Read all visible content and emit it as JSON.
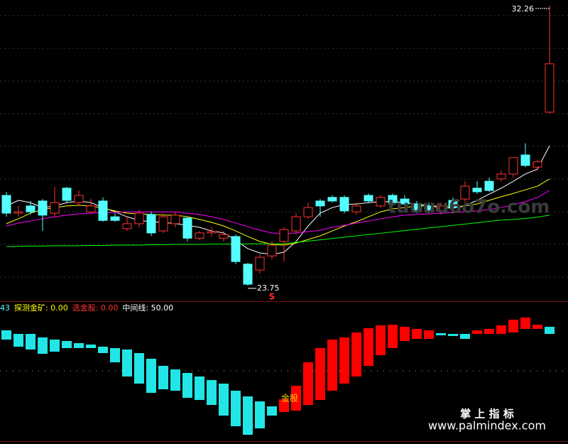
{
  "chart_data": [
    {
      "type": "candlestick",
      "ylim": [
        23.36,
        32.43
      ],
      "up_color": "#ff3232",
      "down_color": "#54ffff",
      "open": [
        26.49,
        25.95,
        26.17,
        26.32,
        25.95,
        26.71,
        26.27,
        25.99,
        26.32,
        25.84,
        25.48,
        25.63,
        25.91,
        25.41,
        25.63,
        25.8,
        25.19,
        25.35,
        25.19,
        25.24,
        24.4,
        24.22,
        24.65,
        25.09,
        25.41,
        25.84,
        26.32,
        26.43,
        26.43,
        25.99,
        26.49,
        26.17,
        26.49,
        26.38,
        26.23,
        26.17,
        26.02,
        26.34,
        26.38,
        26.71,
        26.92,
        26.99,
        27.14,
        27.72,
        27.35,
        29.02
      ],
      "high": [
        26.6,
        26.17,
        26.32,
        26.38,
        26.75,
        26.75,
        26.64,
        26.38,
        26.43,
        25.95,
        25.84,
        26.06,
        25.99,
        25.95,
        25.99,
        25.84,
        25.41,
        25.52,
        25.41,
        25.3,
        24.44,
        24.7,
        25.09,
        25.52,
        25.95,
        26.27,
        26.38,
        26.49,
        26.49,
        26.27,
        26.55,
        26.49,
        26.55,
        26.49,
        26.32,
        26.27,
        26.27,
        26.43,
        26.92,
        26.92,
        27.03,
        27.25,
        27.64,
        28.07,
        27.57,
        32.26
      ],
      "low": [
        25.84,
        25.84,
        25.91,
        25.41,
        25.84,
        26.27,
        26.17,
        25.95,
        25.69,
        25.69,
        25.41,
        25.52,
        25.26,
        25.35,
        25.52,
        25.09,
        25.13,
        25.24,
        25.09,
        24.4,
        23.75,
        24.11,
        24.55,
        24.48,
        25.3,
        25.78,
        25.84,
        26.27,
        25.95,
        25.91,
        26.27,
        26.12,
        26.17,
        26.17,
        25.95,
        25.95,
        25.91,
        25.95,
        26.27,
        26.53,
        26.6,
        26.92,
        27.03,
        27.35,
        27.25,
        28.97
      ],
      "close": [
        25.95,
        25.99,
        25.99,
        25.89,
        26.27,
        26.34,
        26.49,
        26.17,
        25.73,
        25.73,
        25.63,
        25.95,
        25.35,
        25.84,
        25.89,
        25.19,
        25.35,
        25.39,
        25.3,
        24.48,
        23.79,
        24.61,
        24.98,
        25.45,
        25.84,
        26.12,
        26.17,
        26.32,
        26.02,
        26.17,
        26.32,
        26.43,
        26.27,
        26.23,
        26.02,
        26.02,
        26.17,
        26.12,
        26.77,
        26.6,
        26.64,
        27.14,
        27.64,
        27.4,
        27.51,
        30.49
      ],
      "lines": [
        {
          "color": "#ffffff",
          "values": [
            26.17,
            26.34,
            26.27,
            26.12,
            26.17,
            26.27,
            26.32,
            26.27,
            26.12,
            25.99,
            25.84,
            25.73,
            25.69,
            25.67,
            25.63,
            25.58,
            25.52,
            25.41,
            25.35,
            25.13,
            24.87,
            24.74,
            24.7,
            24.76,
            25.09,
            25.56,
            25.95,
            26.12,
            26.21,
            26.23,
            26.27,
            26.3,
            26.3,
            26.27,
            26.23,
            26.17,
            26.12,
            26.1,
            26.17,
            26.34,
            26.53,
            26.71,
            26.92,
            27.14,
            27.29,
            28.0
          ]
        },
        {
          "color": "#ffff00",
          "values": [
            25.63,
            25.78,
            25.95,
            26.06,
            26.12,
            26.17,
            26.19,
            26.17,
            26.1,
            26.02,
            25.95,
            25.93,
            25.91,
            25.89,
            25.89,
            25.84,
            25.76,
            25.67,
            25.56,
            25.41,
            25.24,
            25.09,
            25.0,
            24.98,
            25.04,
            25.15,
            25.26,
            25.41,
            25.56,
            25.69,
            25.84,
            25.99,
            26.08,
            26.12,
            26.17,
            26.17,
            26.17,
            26.14,
            26.17,
            26.23,
            26.34,
            26.45,
            26.55,
            26.66,
            26.77,
            26.99
          ]
        },
        {
          "color": "#ff00ff",
          "values": [
            25.56,
            25.65,
            25.71,
            25.78,
            25.84,
            25.89,
            25.93,
            25.95,
            25.97,
            25.97,
            25.99,
            25.99,
            25.99,
            25.99,
            25.99,
            25.95,
            25.91,
            25.84,
            25.76,
            25.65,
            25.54,
            25.43,
            25.35,
            25.32,
            25.35,
            25.39,
            25.43,
            25.52,
            25.58,
            25.65,
            25.71,
            25.78,
            25.84,
            25.89,
            25.91,
            25.93,
            25.95,
            25.97,
            25.99,
            26.02,
            26.06,
            26.12,
            26.21,
            26.3,
            26.43,
            26.64
          ]
        },
        {
          "color": "#00ff00",
          "values": [
            24.94,
            24.94,
            24.95,
            24.95,
            24.96,
            24.96,
            24.96,
            24.97,
            24.97,
            24.98,
            24.98,
            24.98,
            24.99,
            24.99,
            25.0,
            25.0,
            25.0,
            25.01,
            25.01,
            25.01,
            25.02,
            25.02,
            25.02,
            25.02,
            25.06,
            25.1,
            25.14,
            25.18,
            25.22,
            25.26,
            25.3,
            25.34,
            25.38,
            25.42,
            25.46,
            25.5,
            25.54,
            25.58,
            25.62,
            25.66,
            25.7,
            25.74,
            25.76,
            25.79,
            25.83,
            25.89
          ]
        }
      ],
      "high_label": 32.26,
      "low_label": 23.75,
      "signal": "S"
    },
    {
      "type": "floating-bar",
      "ylim": [
        0,
        100
      ],
      "up_color": "#ff0000",
      "down_color": "#22e6e6",
      "legend": [
        {
          "text": "43",
          "color": "#54ffff"
        },
        {
          "text": "探测金矿: 0.00",
          "color": "#ffff00"
        },
        {
          "text": "选金股: 0.00",
          "color": "#ff3232"
        },
        {
          "text": "中间线: 50.00",
          "color": "#ffffff"
        }
      ],
      "midline": 50,
      "start": [
        78.5,
        76,
        76,
        73.5,
        72,
        71,
        69.5,
        68.5,
        67,
        66,
        65,
        62.5,
        58.5,
        53.5,
        51,
        48.5,
        46,
        43.5,
        41,
        36,
        32,
        28.5,
        25,
        21,
        22,
        26,
        29.5,
        36,
        41,
        46,
        53.5,
        61,
        66,
        71,
        72.5,
        72.5,
        76.5,
        76,
        76,
        76,
        76,
        76,
        77,
        79.5,
        79.5,
        81
      ],
      "end": [
        72,
        67,
        65,
        62,
        63.5,
        66,
        66,
        66,
        62.5,
        56,
        46,
        41,
        34.5,
        37,
        36,
        31,
        29.5,
        26,
        18.5,
        11,
        5,
        9.5,
        18.5,
        30,
        39.5,
        56,
        66,
        72,
        73.5,
        77,
        80,
        82,
        82.5,
        81,
        79.5,
        78.5,
        75,
        74.5,
        72.5,
        78.5,
        79.5,
        82,
        86,
        87.5,
        82.5,
        76
      ],
      "annotation": "金股"
    }
  ],
  "watermark": {
    "site": "tuuuu6o7o.com",
    "brand": "掌 上 指 标",
    "url": "www.palmindex.com"
  }
}
